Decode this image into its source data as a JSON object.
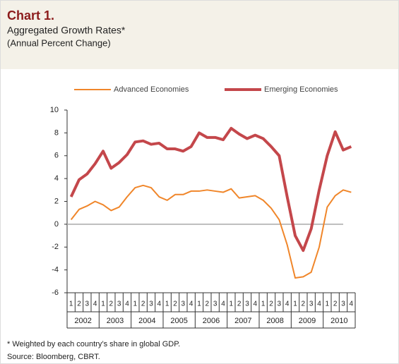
{
  "chart_data": {
    "type": "line",
    "title": "Chart 1.",
    "subtitle": "Aggregated Growth Rates*",
    "subtitle2": "(Annual Percent Change)",
    "categories": [
      "1",
      "2",
      "3",
      "4",
      "1",
      "2",
      "3",
      "4",
      "1",
      "2",
      "3",
      "4",
      "1",
      "2",
      "3",
      "4",
      "1",
      "2",
      "3",
      "4",
      "1",
      "2",
      "3",
      "4",
      "1",
      "2",
      "3",
      "4",
      "1",
      "2",
      "3",
      "4",
      "1",
      "2",
      "3",
      "4"
    ],
    "years": [
      "2002",
      "2003",
      "2004",
      "2005",
      "2006",
      "2007",
      "2008",
      "2009",
      "2010"
    ],
    "series": [
      {
        "name": "Advanced Economies",
        "color": "#f0862a",
        "values": [
          0.4,
          1.3,
          1.6,
          2.0,
          1.7,
          1.2,
          1.5,
          2.4,
          3.2,
          3.4,
          3.2,
          2.4,
          2.1,
          2.6,
          2.6,
          2.9,
          2.9,
          3.0,
          2.9,
          2.8,
          3.1,
          2.3,
          2.4,
          2.5,
          2.1,
          1.4,
          0.4,
          -1.8,
          -4.7,
          -4.6,
          -4.2,
          -2.0,
          1.5,
          2.5,
          3.0,
          2.8
        ]
      },
      {
        "name": "Emerging Economies",
        "color": "#c4474b",
        "values": [
          2.4,
          3.9,
          4.4,
          5.3,
          6.4,
          4.9,
          5.4,
          6.1,
          7.2,
          7.3,
          7.0,
          7.1,
          6.6,
          6.6,
          6.4,
          6.8,
          8.0,
          7.6,
          7.6,
          7.4,
          8.4,
          7.9,
          7.5,
          7.8,
          7.5,
          6.8,
          6.0,
          2.4,
          -1.0,
          -2.3,
          -0.4,
          3.0,
          6.0,
          8.1,
          6.5,
          6.8
        ]
      }
    ],
    "ylim": [
      -6,
      10
    ],
    "yticks": [
      -6,
      -4,
      -2,
      0,
      2,
      4,
      6,
      8,
      10
    ],
    "footnote": "* Weighted by each country’s share in global GDP.",
    "source": "Source: Bloomberg, CBRT."
  }
}
